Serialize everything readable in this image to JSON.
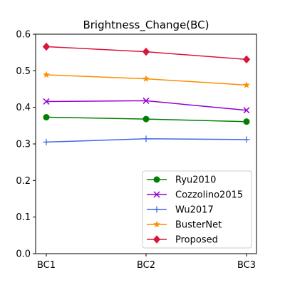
{
  "chart_data": {
    "type": "line",
    "title": "Brightness_Change(BC)",
    "xlabel": "",
    "ylabel": "",
    "categories": [
      "BC1",
      "BC2",
      "BC3"
    ],
    "ylim": [
      0,
      0.6
    ],
    "yticks": [
      "0.0",
      "0.1",
      "0.2",
      "0.3",
      "0.4",
      "0.5",
      "0.6"
    ],
    "grid": false,
    "legend_position": "lower-right",
    "series": [
      {
        "name": "Ryu2010",
        "color": "#008000",
        "marker": "circle",
        "values": [
          0.373,
          0.368,
          0.361
        ]
      },
      {
        "name": "Cozzolino2015",
        "color": "#9400D3",
        "marker": "x",
        "values": [
          0.416,
          0.418,
          0.392
        ]
      },
      {
        "name": "Wu2017",
        "color": "#4169E1",
        "marker": "plus",
        "values": [
          0.305,
          0.314,
          0.312
        ]
      },
      {
        "name": "BusterNet",
        "color": "#FF8C00",
        "marker": "star",
        "values": [
          0.489,
          0.478,
          0.461
        ]
      },
      {
        "name": "Proposed",
        "color": "#DC143C",
        "marker": "diamond",
        "values": [
          0.566,
          0.552,
          0.531
        ]
      }
    ]
  }
}
